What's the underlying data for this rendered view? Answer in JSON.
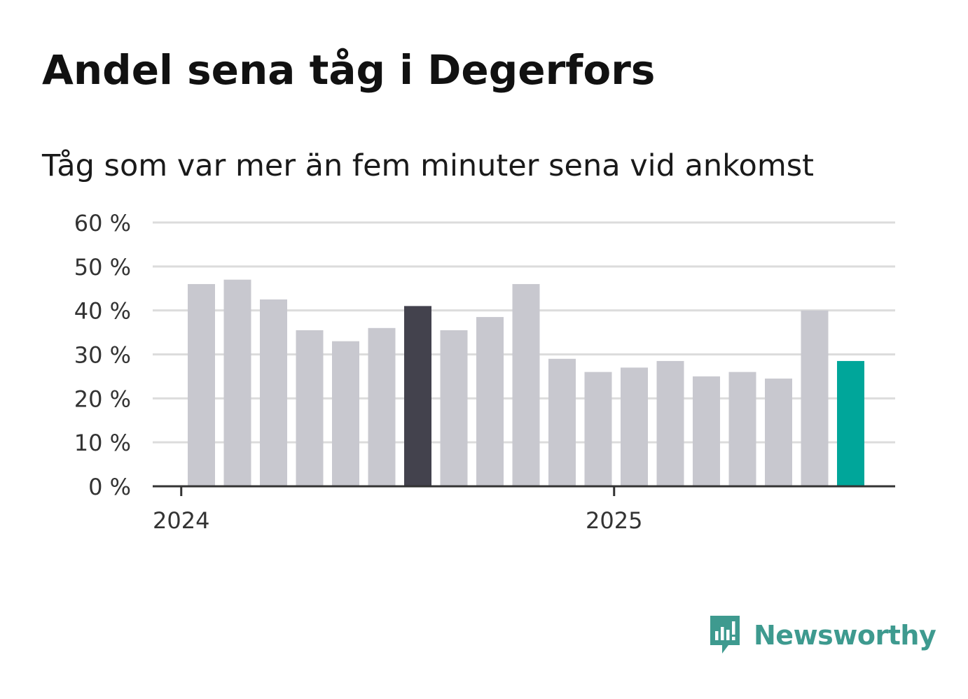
{
  "header": {
    "title": "Andel sena tåg i Degerfors",
    "subtitle": "Tåg som var mer än fem minuter sena vid ankomst"
  },
  "brand": {
    "name": "Newsworthy",
    "color": "#3e9a8f"
  },
  "colors": {
    "bar_default": "#c8c8cf",
    "bar_highlight": "#43424d",
    "bar_latest": "#00a69a",
    "gridline": "#dcdcdc",
    "axis": "#333333",
    "text": "#333333"
  },
  "chart_data": {
    "type": "bar",
    "title": "Andel sena tåg i Degerfors",
    "subtitle": "Tåg som var mer än fem minuter sena vid ankomst",
    "xlabel": "",
    "ylabel": "",
    "ylim": [
      0,
      60
    ],
    "yticks": [
      0,
      10,
      20,
      30,
      40,
      50,
      60
    ],
    "ytick_labels": [
      "0 %",
      "10 %",
      "20 %",
      "30 %",
      "40 %",
      "50 %",
      "60 %"
    ],
    "xtick_labels": [
      {
        "label": "2024",
        "at_index": -0.5
      },
      {
        "label": "2025",
        "at_index": 11.5
      }
    ],
    "grid": true,
    "values": [
      46,
      47,
      42.5,
      35.5,
      33,
      36,
      41,
      35.5,
      38.5,
      46,
      29,
      26,
      27,
      28.5,
      25,
      26,
      24.5,
      40,
      28.5
    ],
    "highlight_indices": [
      6
    ],
    "latest_index": 18
  }
}
